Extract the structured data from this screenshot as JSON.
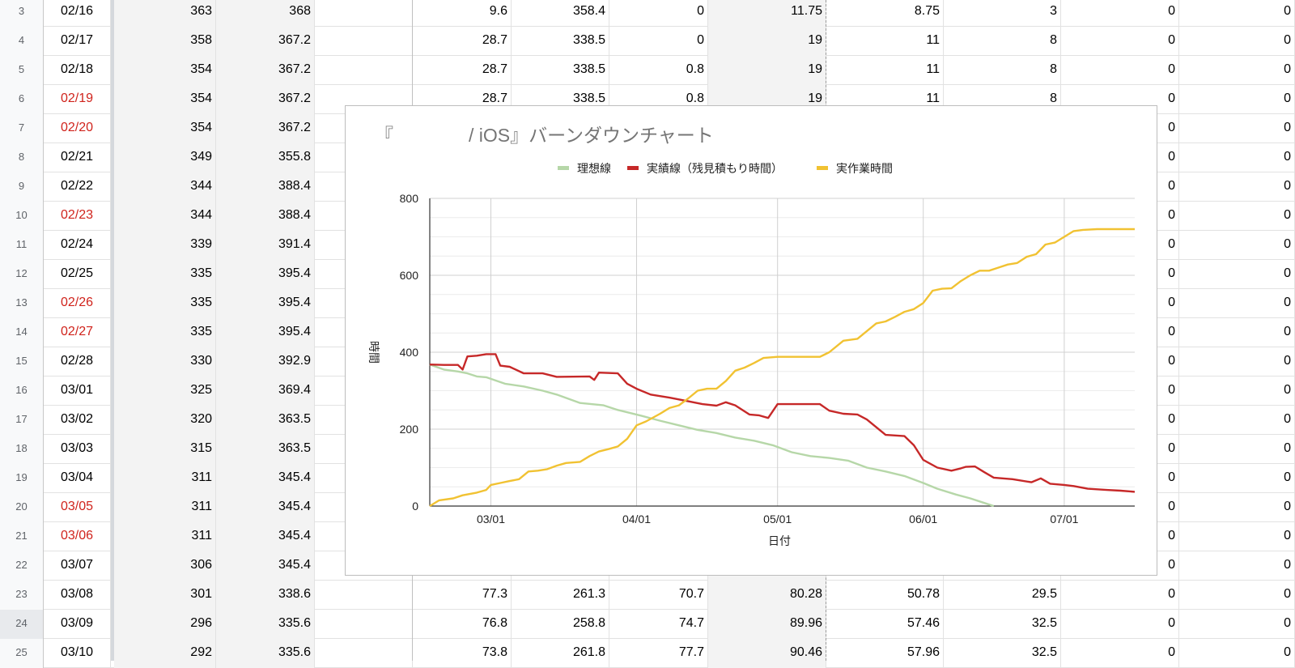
{
  "sheet": {
    "rows": [
      {
        "num": "3",
        "date": "02/16",
        "red": false,
        "b": "363",
        "c": "368",
        "f": "9.6",
        "g": "358.4",
        "h": "0",
        "i": "11.75",
        "j": "8.75",
        "k": "3",
        "l": "0",
        "m": "0"
      },
      {
        "num": "4",
        "date": "02/17",
        "red": false,
        "b": "358",
        "c": "367.2",
        "f": "28.7",
        "g": "338.5",
        "h": "0",
        "i": "19",
        "j": "11",
        "k": "8",
        "l": "0",
        "m": "0"
      },
      {
        "num": "5",
        "date": "02/18",
        "red": false,
        "b": "354",
        "c": "367.2",
        "f": "28.7",
        "g": "338.5",
        "h": "0.8",
        "i": "19",
        "j": "11",
        "k": "8",
        "l": "0",
        "m": "0"
      },
      {
        "num": "6",
        "date": "02/19",
        "red": true,
        "b": "354",
        "c": "367.2",
        "f": "28.7",
        "g": "338.5",
        "h": "0.8",
        "i": "19",
        "j": "11",
        "k": "8",
        "l": "0",
        "m": "0"
      },
      {
        "num": "7",
        "date": "02/20",
        "red": true,
        "b": "354",
        "c": "367.2",
        "l": "0",
        "m": "0"
      },
      {
        "num": "8",
        "date": "02/21",
        "red": false,
        "b": "349",
        "c": "355.8",
        "l": "0",
        "m": "0"
      },
      {
        "num": "9",
        "date": "02/22",
        "red": false,
        "b": "344",
        "c": "388.4",
        "l": "0",
        "m": "0"
      },
      {
        "num": "10",
        "date": "02/23",
        "red": true,
        "b": "344",
        "c": "388.4",
        "l": "0",
        "m": "0"
      },
      {
        "num": "11",
        "date": "02/24",
        "red": false,
        "b": "339",
        "c": "391.4",
        "l": "0",
        "m": "0"
      },
      {
        "num": "12",
        "date": "02/25",
        "red": false,
        "b": "335",
        "c": "395.4",
        "l": "0",
        "m": "0"
      },
      {
        "num": "13",
        "date": "02/26",
        "red": true,
        "b": "335",
        "c": "395.4",
        "l": "0",
        "m": "0"
      },
      {
        "num": "14",
        "date": "02/27",
        "red": true,
        "b": "335",
        "c": "395.4",
        "l": "0",
        "m": "0"
      },
      {
        "num": "15",
        "date": "02/28",
        "red": false,
        "b": "330",
        "c": "392.9",
        "l": "0",
        "m": "0"
      },
      {
        "num": "16",
        "date": "03/01",
        "red": false,
        "b": "325",
        "c": "369.4",
        "l": "0",
        "m": "0"
      },
      {
        "num": "17",
        "date": "03/02",
        "red": false,
        "b": "320",
        "c": "363.5",
        "l": "0",
        "m": "0"
      },
      {
        "num": "18",
        "date": "03/03",
        "red": false,
        "b": "315",
        "c": "363.5",
        "l": "0",
        "m": "0"
      },
      {
        "num": "19",
        "date": "03/04",
        "red": false,
        "b": "311",
        "c": "345.4",
        "l": "0",
        "m": "0"
      },
      {
        "num": "20",
        "date": "03/05",
        "red": true,
        "b": "311",
        "c": "345.4",
        "l": "0",
        "m": "0"
      },
      {
        "num": "21",
        "date": "03/06",
        "red": true,
        "b": "311",
        "c": "345.4",
        "l": "0",
        "m": "0"
      },
      {
        "num": "22",
        "date": "03/07",
        "red": false,
        "b": "306",
        "c": "345.4",
        "l": "0",
        "m": "0"
      },
      {
        "num": "23",
        "date": "03/08",
        "red": false,
        "b": "301",
        "c": "338.6",
        "f": "77.3",
        "g": "261.3",
        "h": "70.7",
        "i": "80.28",
        "j": "50.78",
        "k": "29.5",
        "l": "0",
        "m": "0"
      },
      {
        "num": "24",
        "date": "03/09",
        "red": false,
        "b": "296",
        "c": "335.6",
        "f": "76.8",
        "g": "258.8",
        "h": "74.7",
        "i": "89.96",
        "j": "57.46",
        "k": "32.5",
        "l": "0",
        "m": "0"
      },
      {
        "num": "25",
        "date": "03/10",
        "red": false,
        "b": "292",
        "c": "335.6",
        "f": "73.8",
        "g": "261.8",
        "h": "77.7",
        "i": "90.46",
        "j": "57.96",
        "k": "32.5",
        "l": "0",
        "m": "0"
      }
    ]
  },
  "chart": {
    "title_open": "『",
    "title_rest": "/ iOS』バーンダウンチャート"
  },
  "chart_data": {
    "type": "line",
    "title": "『 / iOS』バーンダウンチャート",
    "xlabel": "日付",
    "ylabel": "時間",
    "ylim": [
      0,
      800
    ],
    "yticks": [
      "0",
      "200",
      "400",
      "600",
      "800"
    ],
    "xticks": [
      "03/01",
      "04/01",
      "05/01",
      "06/01",
      "07/01"
    ],
    "x_range": [
      "02/16",
      "07/16"
    ],
    "grid": true,
    "legend_position": "top",
    "series": [
      {
        "name": "理想線",
        "color": "#b6d7a8",
        "points": [
          [
            "02/16",
            368
          ],
          [
            "02/19",
            355
          ],
          [
            "02/22",
            350
          ],
          [
            "02/24",
            345
          ],
          [
            "02/26",
            337
          ],
          [
            "02/28",
            335
          ],
          [
            "03/04",
            318
          ],
          [
            "03/08",
            311
          ],
          [
            "03/12",
            300
          ],
          [
            "03/15",
            290
          ],
          [
            "03/20",
            268
          ],
          [
            "03/25",
            262
          ],
          [
            "03/28",
            250
          ],
          [
            "04/02",
            235
          ],
          [
            "04/06",
            222
          ],
          [
            "04/10",
            210
          ],
          [
            "04/14",
            198
          ],
          [
            "04/18",
            190
          ],
          [
            "04/22",
            178
          ],
          [
            "04/26",
            170
          ],
          [
            "04/30",
            158
          ],
          [
            "05/04",
            140
          ],
          [
            "05/08",
            130
          ],
          [
            "05/12",
            125
          ],
          [
            "05/16",
            118
          ],
          [
            "05/20",
            100
          ],
          [
            "05/24",
            90
          ],
          [
            "05/28",
            78
          ],
          [
            "06/01",
            60
          ],
          [
            "06/04",
            45
          ],
          [
            "06/08",
            30
          ],
          [
            "06/11",
            20
          ],
          [
            "06/14",
            8
          ],
          [
            "06/16",
            0
          ]
        ]
      },
      {
        "name": "実績線（残見積もり時間）",
        "color": "#c62828",
        "points": [
          [
            "02/16",
            368
          ],
          [
            "02/19",
            367
          ],
          [
            "02/22",
            367
          ],
          [
            "02/23",
            355
          ],
          [
            "02/24",
            389
          ],
          [
            "02/26",
            391
          ],
          [
            "02/28",
            395
          ],
          [
            "03/02",
            395
          ],
          [
            "03/03",
            365
          ],
          [
            "03/05",
            362
          ],
          [
            "03/08",
            345
          ],
          [
            "03/12",
            345
          ],
          [
            "03/15",
            336
          ],
          [
            "03/22",
            337
          ],
          [
            "03/23",
            328
          ],
          [
            "03/24",
            347
          ],
          [
            "03/28",
            345
          ],
          [
            "03/30",
            318
          ],
          [
            "04/01",
            305
          ],
          [
            "04/04",
            290
          ],
          [
            "04/08",
            282
          ],
          [
            "04/11",
            275
          ],
          [
            "04/15",
            265
          ],
          [
            "04/18",
            261
          ],
          [
            "04/20",
            270
          ],
          [
            "04/22",
            262
          ],
          [
            "04/25",
            238
          ],
          [
            "04/27",
            236
          ],
          [
            "04/29",
            229
          ],
          [
            "05/01",
            265
          ],
          [
            "05/10",
            265
          ],
          [
            "05/12",
            248
          ],
          [
            "05/15",
            240
          ],
          [
            "05/18",
            238
          ],
          [
            "05/20",
            225
          ],
          [
            "05/24",
            185
          ],
          [
            "05/28",
            182
          ],
          [
            "05/30",
            158
          ],
          [
            "06/01",
            120
          ],
          [
            "06/04",
            100
          ],
          [
            "06/07",
            92
          ],
          [
            "06/09",
            98
          ],
          [
            "06/10",
            102
          ],
          [
            "06/12",
            103
          ],
          [
            "06/14",
            88
          ],
          [
            "06/16",
            74
          ],
          [
            "06/20",
            70
          ],
          [
            "06/24",
            62
          ],
          [
            "06/26",
            72
          ],
          [
            "06/28",
            58
          ],
          [
            "07/01",
            55
          ],
          [
            "07/03",
            52
          ],
          [
            "07/06",
            45
          ],
          [
            "07/10",
            42
          ],
          [
            "07/13",
            40
          ],
          [
            "07/16",
            37
          ]
        ]
      },
      {
        "name": "実作業時間",
        "color": "#f1c232",
        "points": [
          [
            "02/16",
            0
          ],
          [
            "02/18",
            15
          ],
          [
            "02/21",
            20
          ],
          [
            "02/23",
            28
          ],
          [
            "02/26",
            35
          ],
          [
            "02/28",
            42
          ],
          [
            "03/01",
            55
          ],
          [
            "03/03",
            60
          ],
          [
            "03/05",
            65
          ],
          [
            "03/07",
            70
          ],
          [
            "03/09",
            90
          ],
          [
            "03/11",
            92
          ],
          [
            "03/13",
            96
          ],
          [
            "03/15",
            105
          ],
          [
            "03/17",
            112
          ],
          [
            "03/20",
            115
          ],
          [
            "03/22",
            130
          ],
          [
            "03/24",
            142
          ],
          [
            "03/26",
            148
          ],
          [
            "03/28",
            155
          ],
          [
            "03/30",
            175
          ],
          [
            "04/01",
            210
          ],
          [
            "04/03",
            220
          ],
          [
            "04/06",
            240
          ],
          [
            "04/08",
            255
          ],
          [
            "04/10",
            262
          ],
          [
            "04/12",
            280
          ],
          [
            "04/14",
            300
          ],
          [
            "04/16",
            305
          ],
          [
            "04/18",
            305
          ],
          [
            "04/20",
            325
          ],
          [
            "04/22",
            352
          ],
          [
            "04/24",
            360
          ],
          [
            "04/26",
            372
          ],
          [
            "04/28",
            385
          ],
          [
            "05/01",
            388
          ],
          [
            "05/04",
            388
          ],
          [
            "05/07",
            388
          ],
          [
            "05/10",
            388
          ],
          [
            "05/12",
            400
          ],
          [
            "05/15",
            430
          ],
          [
            "05/18",
            435
          ],
          [
            "05/20",
            455
          ],
          [
            "05/22",
            475
          ],
          [
            "05/24",
            480
          ],
          [
            "05/26",
            492
          ],
          [
            "05/28",
            505
          ],
          [
            "05/30",
            512
          ],
          [
            "06/01",
            528
          ],
          [
            "06/03",
            560
          ],
          [
            "06/05",
            565
          ],
          [
            "06/07",
            566
          ],
          [
            "06/09",
            585
          ],
          [
            "06/11",
            600
          ],
          [
            "06/13",
            612
          ],
          [
            "06/15",
            612
          ],
          [
            "06/17",
            620
          ],
          [
            "06/19",
            628
          ],
          [
            "06/21",
            632
          ],
          [
            "06/23",
            648
          ],
          [
            "06/25",
            655
          ],
          [
            "06/27",
            680
          ],
          [
            "06/29",
            685
          ],
          [
            "07/01",
            700
          ],
          [
            "07/03",
            715
          ],
          [
            "07/05",
            718
          ],
          [
            "07/08",
            720
          ],
          [
            "07/12",
            720
          ],
          [
            "07/16",
            720
          ]
        ]
      }
    ]
  }
}
